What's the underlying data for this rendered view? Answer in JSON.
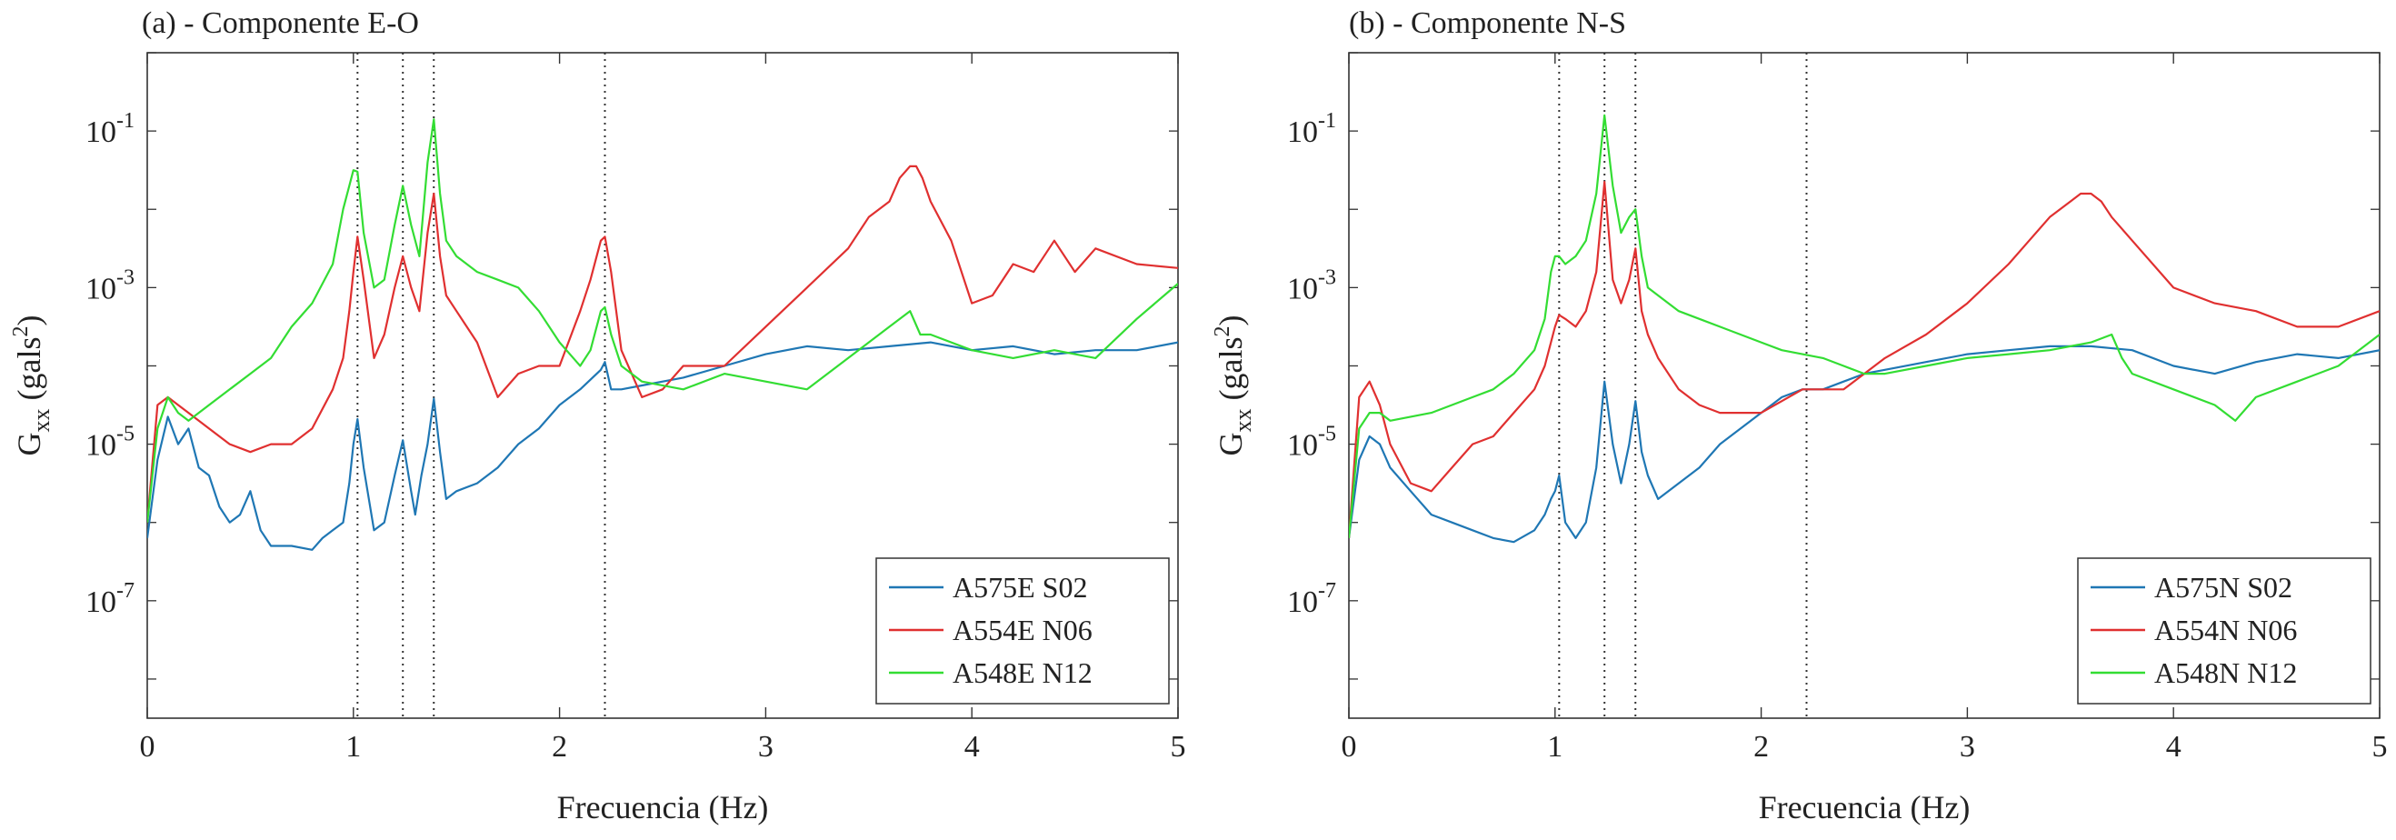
{
  "chart_data": [
    {
      "type": "line",
      "title": "(a) - Componente E-O",
      "xlabel": "Frecuencia (Hz)",
      "ylabel": "G_xx (gals^2)",
      "yscale": "log",
      "xlim": [
        0,
        5
      ],
      "ylim_exponent": [
        -8.5,
        0
      ],
      "xticks": [
        0,
        1,
        2,
        3,
        4,
        5
      ],
      "yticks": [
        {
          "base": "10",
          "exp": "-7"
        },
        {
          "base": "10",
          "exp": "-5"
        },
        {
          "base": "10",
          "exp": "-3"
        },
        {
          "base": "10",
          "exp": "-1"
        }
      ],
      "vlines": [
        1.02,
        1.24,
        1.39,
        2.22
      ],
      "legend_position": "bottom-right",
      "series": [
        {
          "name": "A575E S02",
          "color": "#1f77b4",
          "x": [
            0.0,
            0.05,
            0.1,
            0.15,
            0.2,
            0.25,
            0.3,
            0.35,
            0.4,
            0.45,
            0.5,
            0.55,
            0.6,
            0.7,
            0.8,
            0.85,
            0.9,
            0.95,
            0.98,
            1.0,
            1.02,
            1.05,
            1.1,
            1.15,
            1.2,
            1.24,
            1.28,
            1.3,
            1.33,
            1.36,
            1.39,
            1.42,
            1.45,
            1.5,
            1.6,
            1.7,
            1.8,
            1.9,
            2.0,
            2.1,
            2.2,
            2.22,
            2.25,
            2.3,
            2.4,
            2.5,
            2.6,
            2.8,
            3.0,
            3.2,
            3.4,
            3.6,
            3.8,
            4.0,
            4.2,
            4.4,
            4.6,
            4.8,
            5.0
          ],
          "log10y": [
            -6.2,
            -5.2,
            -4.65,
            -5.0,
            -4.8,
            -5.3,
            -5.4,
            -5.8,
            -6.0,
            -5.9,
            -5.6,
            -6.1,
            -6.3,
            -6.3,
            -6.35,
            -6.2,
            -6.1,
            -6.0,
            -5.5,
            -5.0,
            -4.68,
            -5.3,
            -6.1,
            -6.0,
            -5.4,
            -4.95,
            -5.6,
            -5.9,
            -5.4,
            -5.0,
            -4.42,
            -5.1,
            -5.7,
            -5.6,
            -5.5,
            -5.3,
            -5.0,
            -4.8,
            -4.5,
            -4.3,
            -4.05,
            -3.95,
            -4.3,
            -4.3,
            -4.25,
            -4.2,
            -4.15,
            -4.0,
            -3.85,
            -3.75,
            -3.8,
            -3.75,
            -3.7,
            -3.8,
            -3.75,
            -3.85,
            -3.8,
            -3.8,
            -3.7
          ]
        },
        {
          "name": "A554E N06",
          "color": "#e03030",
          "x": [
            0.0,
            0.05,
            0.1,
            0.15,
            0.2,
            0.3,
            0.4,
            0.5,
            0.6,
            0.7,
            0.8,
            0.9,
            0.95,
            0.98,
            1.0,
            1.02,
            1.05,
            1.1,
            1.15,
            1.2,
            1.24,
            1.28,
            1.32,
            1.36,
            1.39,
            1.42,
            1.45,
            1.5,
            1.6,
            1.7,
            1.8,
            1.9,
            2.0,
            2.1,
            2.15,
            2.2,
            2.22,
            2.25,
            2.3,
            2.4,
            2.5,
            2.6,
            2.8,
            3.0,
            3.2,
            3.4,
            3.5,
            3.6,
            3.65,
            3.7,
            3.73,
            3.76,
            3.8,
            3.9,
            4.0,
            4.1,
            4.2,
            4.3,
            4.4,
            4.5,
            4.6,
            4.8,
            5.0
          ],
          "log10y": [
            -6.0,
            -4.5,
            -4.4,
            -4.5,
            -4.6,
            -4.8,
            -5.0,
            -5.1,
            -5.0,
            -5.0,
            -4.8,
            -4.3,
            -3.9,
            -3.3,
            -2.8,
            -2.35,
            -2.9,
            -3.9,
            -3.6,
            -3.0,
            -2.6,
            -3.0,
            -3.3,
            -2.3,
            -1.8,
            -2.6,
            -3.1,
            -3.3,
            -3.7,
            -4.4,
            -4.1,
            -4.0,
            -4.0,
            -3.3,
            -2.9,
            -2.4,
            -2.35,
            -2.8,
            -3.8,
            -4.4,
            -4.3,
            -4.0,
            -4.0,
            -3.5,
            -3.0,
            -2.5,
            -2.1,
            -1.9,
            -1.6,
            -1.45,
            -1.45,
            -1.6,
            -1.9,
            -2.4,
            -3.2,
            -3.1,
            -2.7,
            -2.8,
            -2.4,
            -2.8,
            -2.5,
            -2.7,
            -2.75
          ]
        },
        {
          "name": "A548E N12",
          "color": "#33dd33",
          "x": [
            0.0,
            0.05,
            0.1,
            0.15,
            0.2,
            0.3,
            0.4,
            0.5,
            0.6,
            0.7,
            0.8,
            0.9,
            0.95,
            0.98,
            1.0,
            1.02,
            1.05,
            1.1,
            1.15,
            1.2,
            1.24,
            1.28,
            1.32,
            1.36,
            1.39,
            1.42,
            1.45,
            1.5,
            1.6,
            1.7,
            1.8,
            1.9,
            2.0,
            2.1,
            2.15,
            2.2,
            2.22,
            2.25,
            2.3,
            2.4,
            2.6,
            2.8,
            3.0,
            3.2,
            3.4,
            3.6,
            3.7,
            3.75,
            3.8,
            4.0,
            4.2,
            4.4,
            4.6,
            4.8,
            5.0
          ],
          "log10y": [
            -6.0,
            -4.8,
            -4.4,
            -4.6,
            -4.7,
            -4.5,
            -4.3,
            -4.1,
            -3.9,
            -3.5,
            -3.2,
            -2.7,
            -2.0,
            -1.7,
            -1.5,
            -1.52,
            -2.3,
            -3.0,
            -2.9,
            -2.2,
            -1.7,
            -2.2,
            -2.6,
            -1.4,
            -0.85,
            -1.8,
            -2.4,
            -2.6,
            -2.8,
            -2.9,
            -3.0,
            -3.3,
            -3.7,
            -4.0,
            -3.8,
            -3.3,
            -3.25,
            -3.6,
            -4.0,
            -4.2,
            -4.3,
            -4.1,
            -4.2,
            -4.3,
            -3.9,
            -3.5,
            -3.3,
            -3.6,
            -3.6,
            -3.8,
            -3.9,
            -3.8,
            -3.9,
            -3.4,
            -2.95
          ]
        }
      ]
    },
    {
      "type": "line",
      "title": "(b) - Componente N-S",
      "xlabel": "Frecuencia (Hz)",
      "ylabel": "G_xx (gals^2)",
      "yscale": "log",
      "xlim": [
        0,
        5
      ],
      "ylim_exponent": [
        -8.5,
        0
      ],
      "xticks": [
        0,
        1,
        2,
        3,
        4,
        5
      ],
      "yticks": [
        {
          "base": "10",
          "exp": "-7"
        },
        {
          "base": "10",
          "exp": "-5"
        },
        {
          "base": "10",
          "exp": "-3"
        },
        {
          "base": "10",
          "exp": "-1"
        }
      ],
      "vlines": [
        1.02,
        1.24,
        1.39,
        2.22
      ],
      "legend_position": "bottom-right",
      "series": [
        {
          "name": "A575N S02",
          "color": "#1f77b4",
          "x": [
            0.0,
            0.05,
            0.1,
            0.15,
            0.2,
            0.3,
            0.4,
            0.5,
            0.6,
            0.7,
            0.8,
            0.9,
            0.95,
            0.98,
            1.0,
            1.02,
            1.05,
            1.1,
            1.15,
            1.2,
            1.24,
            1.28,
            1.32,
            1.36,
            1.39,
            1.42,
            1.45,
            1.5,
            1.6,
            1.7,
            1.8,
            1.9,
            2.0,
            2.1,
            2.2,
            2.3,
            2.4,
            2.5,
            2.6,
            2.8,
            3.0,
            3.2,
            3.4,
            3.6,
            3.8,
            4.0,
            4.2,
            4.4,
            4.6,
            4.8,
            5.0
          ],
          "log10y": [
            -6.2,
            -5.2,
            -4.9,
            -5.0,
            -5.3,
            -5.6,
            -5.9,
            -6.0,
            -6.1,
            -6.2,
            -6.25,
            -6.1,
            -5.9,
            -5.7,
            -5.6,
            -5.4,
            -6.0,
            -6.2,
            -6.0,
            -5.3,
            -4.2,
            -5.0,
            -5.5,
            -5.0,
            -4.45,
            -5.1,
            -5.4,
            -5.7,
            -5.5,
            -5.3,
            -5.0,
            -4.8,
            -4.6,
            -4.4,
            -4.3,
            -4.3,
            -4.2,
            -4.1,
            -4.05,
            -3.95,
            -3.85,
            -3.8,
            -3.75,
            -3.75,
            -3.8,
            -4.0,
            -4.1,
            -3.95,
            -3.85,
            -3.9,
            -3.8
          ]
        },
        {
          "name": "A554N N06",
          "color": "#e03030",
          "x": [
            0.0,
            0.05,
            0.1,
            0.15,
            0.2,
            0.3,
            0.4,
            0.5,
            0.6,
            0.7,
            0.8,
            0.9,
            0.95,
            0.98,
            1.0,
            1.02,
            1.05,
            1.1,
            1.15,
            1.2,
            1.24,
            1.28,
            1.32,
            1.36,
            1.39,
            1.42,
            1.45,
            1.5,
            1.6,
            1.7,
            1.8,
            1.9,
            2.0,
            2.1,
            2.2,
            2.3,
            2.4,
            2.5,
            2.6,
            2.8,
            3.0,
            3.2,
            3.3,
            3.4,
            3.5,
            3.55,
            3.6,
            3.65,
            3.7,
            3.8,
            4.0,
            4.2,
            4.4,
            4.6,
            4.8,
            5.0
          ],
          "log10y": [
            -6.2,
            -4.4,
            -4.2,
            -4.5,
            -5.0,
            -5.5,
            -5.6,
            -5.3,
            -5.0,
            -4.9,
            -4.6,
            -4.3,
            -4.0,
            -3.7,
            -3.5,
            -3.35,
            -3.4,
            -3.5,
            -3.3,
            -2.8,
            -1.65,
            -2.9,
            -3.2,
            -2.9,
            -2.5,
            -3.3,
            -3.6,
            -3.9,
            -4.3,
            -4.5,
            -4.6,
            -4.6,
            -4.6,
            -4.45,
            -4.3,
            -4.3,
            -4.3,
            -4.1,
            -3.9,
            -3.6,
            -3.2,
            -2.7,
            -2.4,
            -2.1,
            -1.9,
            -1.8,
            -1.8,
            -1.9,
            -2.1,
            -2.4,
            -3.0,
            -3.2,
            -3.3,
            -3.5,
            -3.5,
            -3.3
          ]
        },
        {
          "name": "A548N N12",
          "color": "#33dd33",
          "x": [
            0.0,
            0.05,
            0.1,
            0.15,
            0.2,
            0.3,
            0.4,
            0.5,
            0.6,
            0.7,
            0.8,
            0.9,
            0.95,
            0.98,
            1.0,
            1.02,
            1.05,
            1.1,
            1.15,
            1.2,
            1.24,
            1.28,
            1.32,
            1.36,
            1.39,
            1.42,
            1.45,
            1.5,
            1.6,
            1.7,
            1.8,
            1.9,
            2.0,
            2.1,
            2.2,
            2.3,
            2.4,
            2.5,
            2.6,
            2.8,
            3.0,
            3.2,
            3.4,
            3.6,
            3.7,
            3.75,
            3.8,
            4.0,
            4.2,
            4.3,
            4.4,
            4.6,
            4.8,
            5.0
          ],
          "log10y": [
            -6.2,
            -4.8,
            -4.6,
            -4.6,
            -4.7,
            -4.65,
            -4.6,
            -4.5,
            -4.4,
            -4.3,
            -4.1,
            -3.8,
            -3.4,
            -2.8,
            -2.6,
            -2.6,
            -2.7,
            -2.6,
            -2.4,
            -1.8,
            -0.8,
            -1.7,
            -2.3,
            -2.1,
            -2.0,
            -2.6,
            -3.0,
            -3.1,
            -3.3,
            -3.4,
            -3.5,
            -3.6,
            -3.7,
            -3.8,
            -3.85,
            -3.9,
            -4.0,
            -4.1,
            -4.1,
            -4.0,
            -3.9,
            -3.85,
            -3.8,
            -3.7,
            -3.6,
            -3.9,
            -4.1,
            -4.3,
            -4.5,
            -4.7,
            -4.4,
            -4.2,
            -4.0,
            -3.6
          ]
        }
      ]
    }
  ]
}
